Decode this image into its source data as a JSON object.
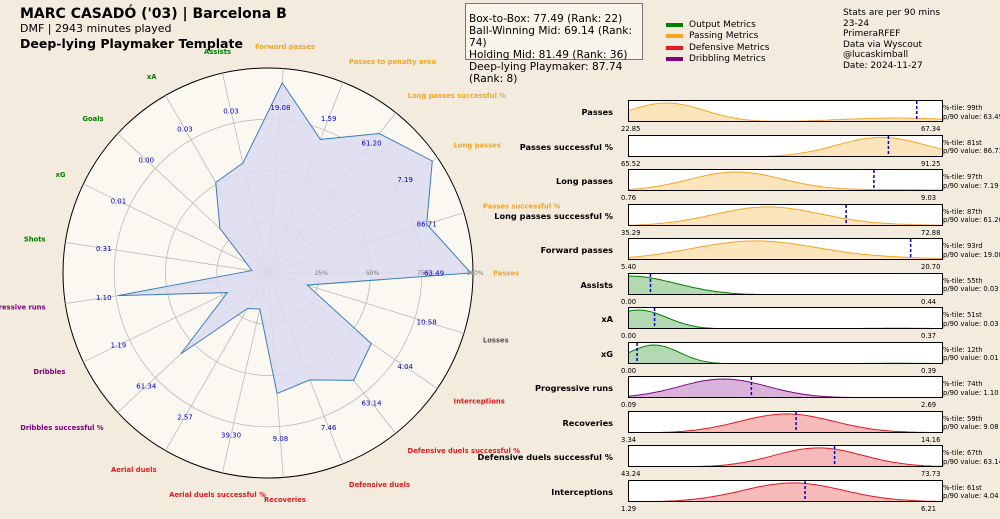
{
  "header": {
    "title": "MARC CASADÓ ('03) | Barcelona B",
    "subtitle": "DMF | 2943 minutes played",
    "template": "Deep-lying Playmaker Template"
  },
  "scores": [
    "Box-to-Box: 77.49 (Rank: 22)",
    "Ball-Winning Mid: 69.14 (Rank: 74)",
    "Holding Mid: 81.49 (Rank: 36)",
    "Deep-lying Playmaker: 87.74 (Rank: 8)"
  ],
  "legend": [
    {
      "label": "Output Metrics",
      "color": "#008000"
    },
    {
      "label": "Passing Metrics",
      "color": "#f5a623"
    },
    {
      "label": "Defensive Metrics",
      "color": "#e41a1c"
    },
    {
      "label": "Dribbling Metrics",
      "color": "#800080"
    }
  ],
  "meta": [
    "Stats are per 90 mins",
    "23-24",
    "PrimeraRFEF",
    "Data via Wyscout",
    "@lucaskimball",
    "Date: 2024-11-27"
  ],
  "colors": {
    "Output": "#008000",
    "Passing": "#f5a623",
    "Defensive": "#e41a1c",
    "Dribbling": "#800080",
    "Other": "#555555",
    "radar_fill": "#dcdcf0",
    "radar_line": "#3a7ebf",
    "value_text": "#0000cc"
  },
  "chart_data": [
    {
      "type": "radar",
      "ring_labels": [
        "25%",
        "50%",
        "75%",
        "100%"
      ],
      "axes": [
        {
          "label": "Passes",
          "group": "Passing",
          "value": "63.49",
          "percentile": 99
        },
        {
          "label": "Passes successful %",
          "group": "Passing",
          "value": "86.71",
          "percentile": 81
        },
        {
          "label": "Long passes",
          "group": "Passing",
          "value": "7.19",
          "percentile": 97
        },
        {
          "label": "Long passes successful %",
          "group": "Passing",
          "value": "61.20",
          "percentile": 87
        },
        {
          "label": "Passes to penalty area",
          "group": "Passing",
          "value": "1.59",
          "percentile": 70
        },
        {
          "label": "Forward passes",
          "group": "Passing",
          "value": "19.08",
          "percentile": 93
        },
        {
          "label": "Assists",
          "group": "Output",
          "value": "0.03",
          "percentile": 55
        },
        {
          "label": "xA",
          "group": "Output",
          "value": "0.03",
          "percentile": 51
        },
        {
          "label": "Goals",
          "group": "Output",
          "value": "0.00",
          "percentile": 32
        },
        {
          "label": "xG",
          "group": "Output",
          "value": "0.01",
          "percentile": 12
        },
        {
          "label": "Shots",
          "group": "Output",
          "value": "0.31",
          "percentile": 8
        },
        {
          "label": "Progressive runs",
          "group": "Dribbling",
          "value": "1.10",
          "percentile": 74
        },
        {
          "label": "Dribbles",
          "group": "Dribbling",
          "value": "1.19",
          "percentile": 22
        },
        {
          "label": "Dribbles successful %",
          "group": "Dribbling",
          "value": "61.34",
          "percentile": 58
        },
        {
          "label": "Aerial duels",
          "group": "Defensive",
          "value": "2.57",
          "percentile": 20
        },
        {
          "label": "Aerial duels successful %",
          "group": "Defensive",
          "value": "39.30",
          "percentile": 18
        },
        {
          "label": "Recoveries",
          "group": "Defensive",
          "value": "9.08",
          "percentile": 59
        },
        {
          "label": "Defensive duels",
          "group": "Defensive",
          "value": "7.46",
          "percentile": 56
        },
        {
          "label": "Defensive duels successful %",
          "group": "Defensive",
          "value": "63.14",
          "percentile": 67
        },
        {
          "label": "Interceptions",
          "group": "Defensive",
          "value": "4.04",
          "percentile": 61
        },
        {
          "label": "Losses",
          "group": "Other",
          "value": "10.58",
          "percentile": 20
        }
      ]
    },
    {
      "type": "area",
      "distributions": [
        {
          "label": "Passes",
          "group": "Passing",
          "min": "22.85",
          "max": "67.34",
          "pctile": "%-tile: 99th",
          "p90": "p/90 value: 63.49",
          "value": 63.49,
          "peak": 0.12,
          "width": 0.12,
          "tail": 0.6
        },
        {
          "label": "Passes successful %",
          "group": "Passing",
          "min": "65.52",
          "max": "91.25",
          "pctile": "%-tile: 81st",
          "p90": "p/90 value: 86.71",
          "value": 86.71,
          "peak": 0.8,
          "width": 0.14,
          "tail": 0.1
        },
        {
          "label": "Long passes",
          "group": "Passing",
          "min": "0.76",
          "max": "9.03",
          "pctile": "%-tile: 97th",
          "p90": "p/90 value: 7.19",
          "value": 7.19,
          "peak": 0.34,
          "width": 0.15,
          "tail": 0.2
        },
        {
          "label": "Long passes successful %",
          "group": "Passing",
          "min": "35.29",
          "max": "72.88",
          "pctile": "%-tile: 87th",
          "p90": "p/90 value: 61.20",
          "value": 61.2,
          "peak": 0.44,
          "width": 0.17,
          "tail": 0.15
        },
        {
          "label": "Forward passes",
          "group": "Passing",
          "min": "5.40",
          "max": "20.70",
          "pctile": "%-tile: 93rd",
          "p90": "p/90 value: 19.08",
          "value": 19.08,
          "peak": 0.4,
          "width": 0.2,
          "tail": 0.25
        },
        {
          "label": "Assists",
          "group": "Output",
          "min": "0.00",
          "max": "0.44",
          "pctile": "%-tile: 55th",
          "p90": "p/90 value: 0.03",
          "value": 0.03,
          "peak": 0.0,
          "width": 0.15,
          "tail": 0.05
        },
        {
          "label": "xA",
          "group": "Output",
          "min": "0.00",
          "max": "0.37",
          "pctile": "%-tile: 51st",
          "p90": "p/90 value: 0.03",
          "value": 0.03,
          "peak": 0.03,
          "width": 0.09,
          "tail": 0.1
        },
        {
          "label": "xG",
          "group": "Output",
          "min": "0.00",
          "max": "0.39",
          "pctile": "%-tile: 12th",
          "p90": "p/90 value: 0.01",
          "value": 0.01,
          "peak": 0.08,
          "width": 0.08,
          "tail": 0.1
        },
        {
          "label": "Progressive runs",
          "group": "Dribbling",
          "min": "0.09",
          "max": "2.69",
          "pctile": "%-tile: 74th",
          "p90": "p/90 value: 1.10",
          "value": 1.1,
          "peak": 0.3,
          "width": 0.14,
          "tail": 0.05
        },
        {
          "label": "Recoveries",
          "group": "Defensive",
          "min": "3.34",
          "max": "14.16",
          "pctile": "%-tile: 59th",
          "p90": "p/90 value: 9.08",
          "value": 9.08,
          "peak": 0.5,
          "width": 0.15,
          "tail": 0.05
        },
        {
          "label": "Defensive duels successful %",
          "group": "Defensive",
          "min": "43.24",
          "max": "73.73",
          "pctile": "%-tile: 67th",
          "p90": "p/90 value: 63.14",
          "value": 63.14,
          "peak": 0.6,
          "width": 0.14,
          "tail": 0.05
        },
        {
          "label": "Interceptions",
          "group": "Defensive",
          "min": "1.29",
          "max": "6.21",
          "pctile": "%-tile: 61st",
          "p90": "p/90 value: 4.04",
          "value": 4.04,
          "peak": 0.52,
          "width": 0.16,
          "tail": 0.05
        }
      ]
    }
  ]
}
